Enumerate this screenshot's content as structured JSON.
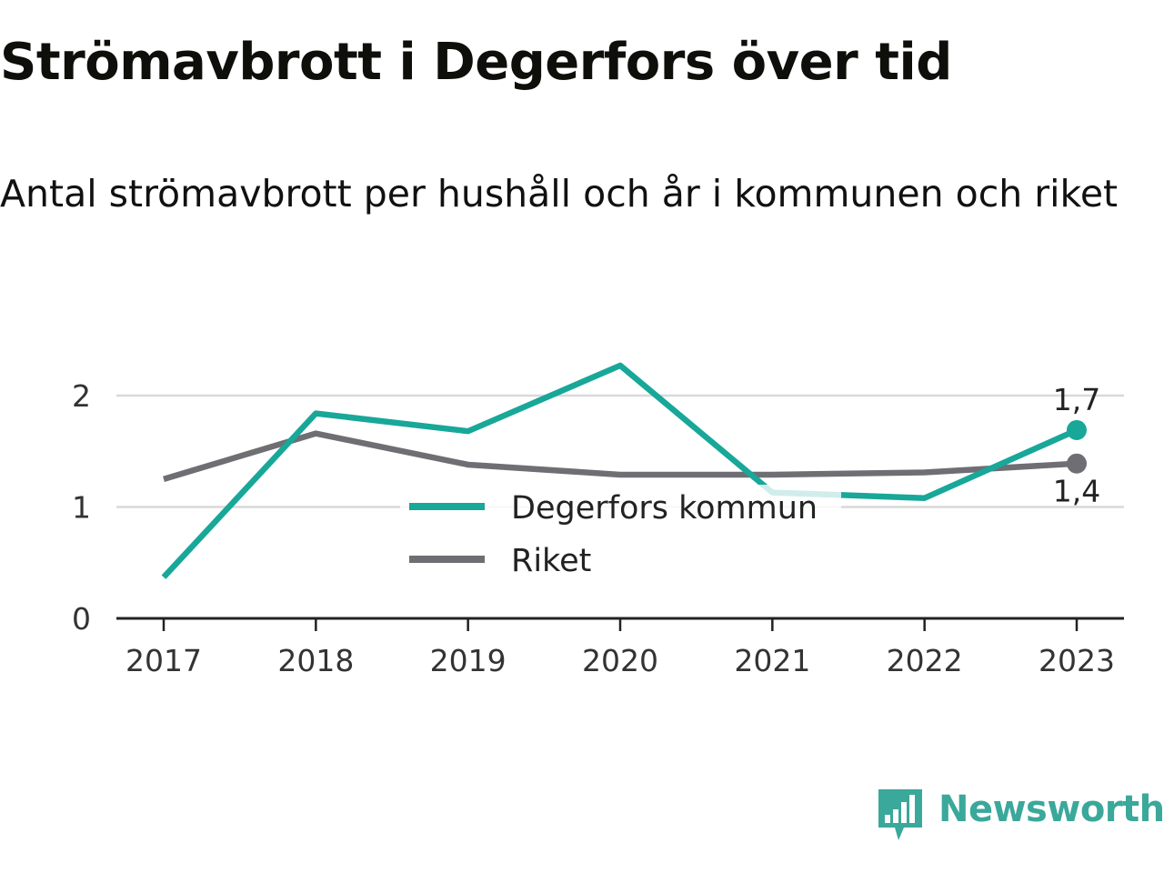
{
  "title": "Strömavbrott i Degerfors över tid",
  "subtitle": "Antal strömavbrott per hushåll och år i kommunen och riket",
  "brand": "Newsworthy",
  "colors": {
    "accent": "#18a799",
    "riket": "#6e6e74",
    "grid": "#d9d9d9",
    "axis": "#222222",
    "brand": "#3aa89a"
  },
  "chart_data": {
    "type": "line",
    "x": [
      "2017",
      "2018",
      "2019",
      "2020",
      "2021",
      "2022",
      "2023"
    ],
    "series": [
      {
        "name": "Degerfors kommun",
        "values": [
          0.37,
          1.84,
          1.68,
          2.27,
          1.13,
          1.08,
          1.69
        ],
        "color": "#18a799",
        "end_label": "1,7"
      },
      {
        "name": "Riket",
        "values": [
          1.25,
          1.66,
          1.38,
          1.29,
          1.29,
          1.31,
          1.39
        ],
        "color": "#6e6e74",
        "end_label": "1,4"
      }
    ],
    "yticks": [
      {
        "value": 0,
        "label": "0"
      },
      {
        "value": 1,
        "label": "1"
      },
      {
        "value": 2,
        "label": "2"
      }
    ],
    "ylim": [
      0,
      2.2
    ],
    "xlabel": "",
    "ylabel": "",
    "grid": true,
    "legend": "center"
  }
}
